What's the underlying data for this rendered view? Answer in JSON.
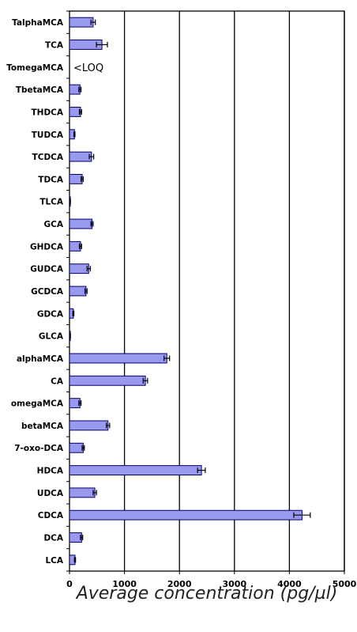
{
  "chart_data": {
    "type": "bar",
    "orientation": "horizontal",
    "categories": [
      "TalphaMCA",
      "TCA",
      "TomegaMCA",
      "TbetaMCA",
      "THDCA",
      "TUDCA",
      "TCDCA",
      "TDCA",
      "TLCA",
      "GCA",
      "GHDCA",
      "GUDCA",
      "GCDCA",
      "GDCA",
      "GLCA",
      "alphaMCA",
      "CA",
      "omegaMCA",
      "betaMCA",
      "7-oxo-DCA",
      "HDCA",
      "UDCA",
      "CDCA",
      "DCA",
      "LCA"
    ],
    "values": [
      430,
      590,
      null,
      190,
      200,
      90,
      400,
      230,
      15,
      410,
      200,
      350,
      300,
      70,
      15,
      1770,
      1380,
      190,
      700,
      250,
      2400,
      460,
      4230,
      220,
      100
    ],
    "errors": [
      40,
      100,
      null,
      20,
      20,
      10,
      40,
      20,
      2,
      20,
      20,
      30,
      20,
      10,
      2,
      50,
      40,
      20,
      30,
      20,
      70,
      30,
      150,
      20,
      10
    ],
    "value_labels": [
      "",
      "",
      "<LOQ",
      "",
      "",
      "",
      "",
      "",
      "",
      "",
      "",
      "",
      "",
      "",
      "",
      "",
      "",
      "",
      "",
      "",
      "",
      "",
      "",
      "",
      ""
    ],
    "xlabel": "Average concentration (pg/µl)",
    "ylabel": "",
    "title": "",
    "xlim": [
      0,
      5000
    ],
    "xticks": [
      0,
      1000,
      2000,
      3000,
      4000,
      5000
    ],
    "grid": "vertical-major",
    "bar_color": "#9999ee",
    "bar_edge_color": "#000066",
    "error_color": "#000000"
  }
}
